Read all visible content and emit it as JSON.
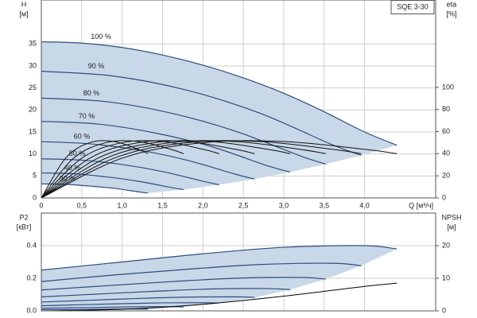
{
  "chart_data": [
    {
      "type": "line",
      "title": "SQE 3-30",
      "y_label": "H",
      "y_unit": "[м]",
      "y2_label": "eta",
      "y2_unit": "[%]",
      "x_label": "Q [м³/ч]",
      "xlim": [
        0,
        4.88
      ],
      "xticks": [
        0,
        {
          "value": 0.5,
          "label": "0,5"
        },
        {
          "value": 1,
          "label": "1,0"
        },
        {
          "value": 1.5,
          "label": "1,5"
        },
        {
          "value": 2,
          "label": "2,0"
        },
        {
          "value": 2.5,
          "label": "2,5"
        },
        {
          "value": 3,
          "label": "3,0"
        },
        {
          "value": 3.5,
          "label": "3,5"
        },
        {
          "value": 4,
          "label": "4,0"
        }
      ],
      "ylim": [
        0,
        45
      ],
      "yticks": [
        0,
        5,
        10,
        15,
        20,
        25,
        30,
        35
      ],
      "y2lim": [
        0,
        179
      ],
      "y2ticks": [
        0,
        20,
        40,
        60,
        80,
        100
      ],
      "grid": true,
      "fill": "#c8d8e8",
      "series": [
        {
          "name": "100 %",
          "color": "#2f4d7e",
          "x": [
            0,
            0.5,
            1,
            1.5,
            2,
            2.5,
            3,
            3.5,
            4,
            4.4
          ],
          "values": [
            35.5,
            35.2,
            34.2,
            32.5,
            30.2,
            27.3,
            23.8,
            19.6,
            15.0,
            12.0
          ]
        },
        {
          "name": "90 %",
          "color": "#2f4d7e",
          "x": [
            0,
            0.9,
            1.8,
            2.7,
            3.6,
            3.96
          ],
          "values": [
            28.8,
            27.7,
            24.5,
            19.3,
            12.1,
            9.7
          ]
        },
        {
          "name": "80 %",
          "color": "#2f4d7e",
          "x": [
            0,
            0.8,
            1.6,
            2.4,
            3.2,
            3.52
          ],
          "values": [
            22.7,
            21.9,
            19.3,
            15.2,
            9.6,
            7.7
          ]
        },
        {
          "name": "70 %",
          "color": "#2f4d7e",
          "x": [
            0,
            0.7,
            1.4,
            2.1,
            2.8,
            3.08
          ],
          "values": [
            17.4,
            16.8,
            14.8,
            11.7,
            7.3,
            5.9
          ]
        },
        {
          "name": "60 %",
          "color": "#2f4d7e",
          "x": [
            0,
            0.6,
            1.2,
            1.8,
            2.4,
            2.64
          ],
          "values": [
            12.8,
            12.3,
            10.9,
            8.6,
            5.4,
            4.3
          ]
        },
        {
          "name": "50 %",
          "color": "#2f4d7e",
          "x": [
            0,
            0.5,
            1,
            1.5,
            2,
            2.2
          ],
          "values": [
            8.9,
            8.6,
            7.6,
            6.0,
            3.8,
            3.0
          ]
        },
        {
          "name": "40 %",
          "color": "#2f4d7e",
          "x": [
            0,
            0.4,
            0.8,
            1.2,
            1.6,
            1.76
          ],
          "values": [
            5.7,
            5.5,
            4.8,
            3.8,
            2.4,
            1.9
          ]
        },
        {
          "name": "30 %",
          "color": "#2f4d7e",
          "x": [
            0,
            0.3,
            0.6,
            0.9,
            1.2,
            1.32
          ],
          "values": [
            3.2,
            3.1,
            2.7,
            2.2,
            1.4,
            1.1
          ]
        },
        {
          "axis": "y2",
          "color": "#111111",
          "x": [
            0,
            1,
            2,
            3,
            4,
            4.4
          ],
          "values": [
            0,
            36,
            50,
            51,
            44,
            40
          ]
        },
        {
          "axis": "y2",
          "color": "#111111",
          "x": [
            0,
            0.9,
            1.8,
            2.7,
            3.6,
            3.96
          ],
          "values": [
            0,
            36,
            50,
            51,
            44,
            40
          ]
        },
        {
          "axis": "y2",
          "color": "#111111",
          "x": [
            0,
            0.8,
            1.6,
            2.4,
            3.2,
            3.52
          ],
          "values": [
            0,
            36,
            50,
            51,
            44,
            40
          ]
        },
        {
          "axis": "y2",
          "color": "#111111",
          "x": [
            0,
            0.7,
            1.4,
            2.1,
            2.8,
            3.08
          ],
          "values": [
            0,
            36,
            50,
            51,
            44,
            40
          ]
        },
        {
          "axis": "y2",
          "color": "#111111",
          "x": [
            0,
            0.6,
            1.2,
            1.8,
            2.4,
            2.64
          ],
          "values": [
            0,
            36,
            50,
            51,
            44,
            40
          ]
        },
        {
          "axis": "y2",
          "color": "#111111",
          "x": [
            0,
            0.5,
            1,
            1.5,
            2,
            2.2
          ],
          "values": [
            0,
            36,
            50,
            51,
            44,
            40
          ]
        },
        {
          "axis": "y2",
          "color": "#111111",
          "x": [
            0,
            0.4,
            0.8,
            1.2,
            1.6,
            1.76
          ],
          "values": [
            0,
            36,
            50,
            51,
            44,
            40
          ]
        },
        {
          "axis": "y2",
          "color": "#111111",
          "x": [
            0,
            0.3,
            0.6,
            0.9,
            1.2,
            1.32
          ],
          "values": [
            0,
            36,
            50,
            51,
            44,
            40
          ]
        }
      ]
    },
    {
      "type": "line",
      "y_label": "P2",
      "y_unit": "[кВт]",
      "y2_label": "NPSH",
      "y2_unit": "[м]",
      "xlim": [
        0,
        4.88
      ],
      "ylim": [
        0,
        0.6
      ],
      "yticks": [
        {
          "value": 0,
          "label": "0.0"
        },
        0.2,
        0.4
      ],
      "y2lim": [
        0,
        30
      ],
      "y2ticks": [
        0,
        10,
        20
      ],
      "grid": true,
      "fill": "#c8d8e8",
      "series": [
        {
          "color": "#2f4d7e",
          "x": [
            0,
            1,
            2,
            3,
            4,
            4.4
          ],
          "values": [
            0.25,
            0.3,
            0.35,
            0.39,
            0.4,
            0.38
          ]
        },
        {
          "color": "#2f4d7e",
          "x": [
            0,
            0.9,
            1.8,
            2.7,
            3.6,
            3.96
          ],
          "values": [
            0.18,
            0.22,
            0.255,
            0.284,
            0.292,
            0.277
          ]
        },
        {
          "color": "#2f4d7e",
          "x": [
            0,
            0.8,
            1.6,
            2.4,
            3.2,
            3.52
          ],
          "values": [
            0.128,
            0.154,
            0.179,
            0.2,
            0.205,
            0.195
          ]
        },
        {
          "color": "#2f4d7e",
          "x": [
            0,
            0.7,
            1.4,
            2.1,
            2.8,
            3.08
          ],
          "values": [
            0.086,
            0.103,
            0.12,
            0.134,
            0.137,
            0.13
          ]
        },
        {
          "color": "#2f4d7e",
          "x": [
            0,
            0.6,
            1.2,
            1.8,
            2.4,
            2.64
          ],
          "values": [
            0.054,
            0.065,
            0.076,
            0.084,
            0.086,
            0.082
          ]
        },
        {
          "color": "#2f4d7e",
          "x": [
            0,
            0.5,
            1,
            1.5,
            2,
            2.2
          ],
          "values": [
            0.031,
            0.038,
            0.044,
            0.049,
            0.05,
            0.048
          ]
        },
        {
          "color": "#2f4d7e",
          "x": [
            0,
            0.4,
            0.8,
            1.2,
            1.6,
            1.76
          ],
          "values": [
            0.016,
            0.019,
            0.022,
            0.025,
            0.026,
            0.024
          ]
        },
        {
          "color": "#2f4d7e",
          "x": [
            0,
            0.3,
            0.6,
            0.9,
            1.2,
            1.32
          ],
          "values": [
            0.007,
            0.008,
            0.009,
            0.011,
            0.011,
            0.01
          ]
        },
        {
          "axis": "y2",
          "color": "#000000",
          "x": [
            0,
            1,
            2,
            3,
            4,
            4.4
          ],
          "values": [
            0,
            0.5,
            2,
            4.5,
            7.5,
            8.5
          ]
        }
      ]
    }
  ]
}
